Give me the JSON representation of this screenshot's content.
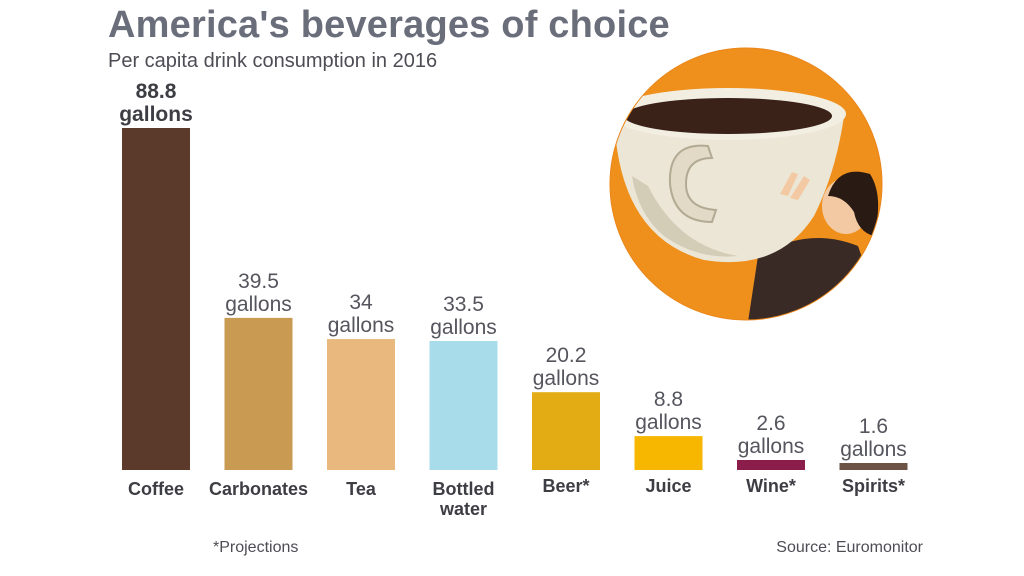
{
  "title": "America's beverages of choice",
  "subtitle": "Per capita drink consumption in 2016",
  "footnote": "*Projections",
  "source": "Source: Euromonitor",
  "chart_data": {
    "type": "bar",
    "title": "America's beverages of choice",
    "subtitle": "Per capita drink consumption in 2016",
    "xlabel": "",
    "ylabel": "",
    "ylim": [
      0,
      88.8
    ],
    "unit": "gallons",
    "grid": false,
    "categories": [
      {
        "label": [
          "Coffee"
        ],
        "value": 88.8,
        "value_label": "88.8",
        "unit_label": "gallons",
        "color": "#5b3a2c",
        "bold_value": true
      },
      {
        "label": [
          "Carbonates"
        ],
        "value": 39.5,
        "value_label": "39.5",
        "unit_label": "gallons",
        "color": "#c89a52",
        "bold_value": false
      },
      {
        "label": [
          "Tea"
        ],
        "value": 34,
        "value_label": "34",
        "unit_label": "gallons",
        "color": "#e8b87e",
        "bold_value": false
      },
      {
        "label": [
          "Bottled",
          "water"
        ],
        "value": 33.5,
        "value_label": "33.5",
        "unit_label": "gallons",
        "color": "#a8dcea",
        "bold_value": false
      },
      {
        "label": [
          "Beer*"
        ],
        "value": 20.2,
        "value_label": "20.2",
        "unit_label": "gallons",
        "color": "#e3ac14",
        "bold_value": false
      },
      {
        "label": [
          "Juice"
        ],
        "value": 8.8,
        "value_label": "8.8",
        "unit_label": "gallons",
        "color": "#f7b700",
        "bold_value": false
      },
      {
        "label": [
          "Wine*"
        ],
        "value": 2.6,
        "value_label": "2.6",
        "unit_label": "gallons",
        "color": "#8a1d4a",
        "bold_value": false
      },
      {
        "label": [
          "Spirits*"
        ],
        "value": 1.6,
        "value_label": "1.6",
        "unit_label": "gallons",
        "color": "#6b5446",
        "bold_value": false
      }
    ]
  },
  "illustration": {
    "name": "cup-illustration",
    "background_color": "#f0901c",
    "cup_color": "#ece6d6",
    "coffee_color": "#3a2218",
    "hair_color": "#2a1a14",
    "skin_color": "#f2c9a3",
    "sweater_color": "#3a2a26"
  }
}
